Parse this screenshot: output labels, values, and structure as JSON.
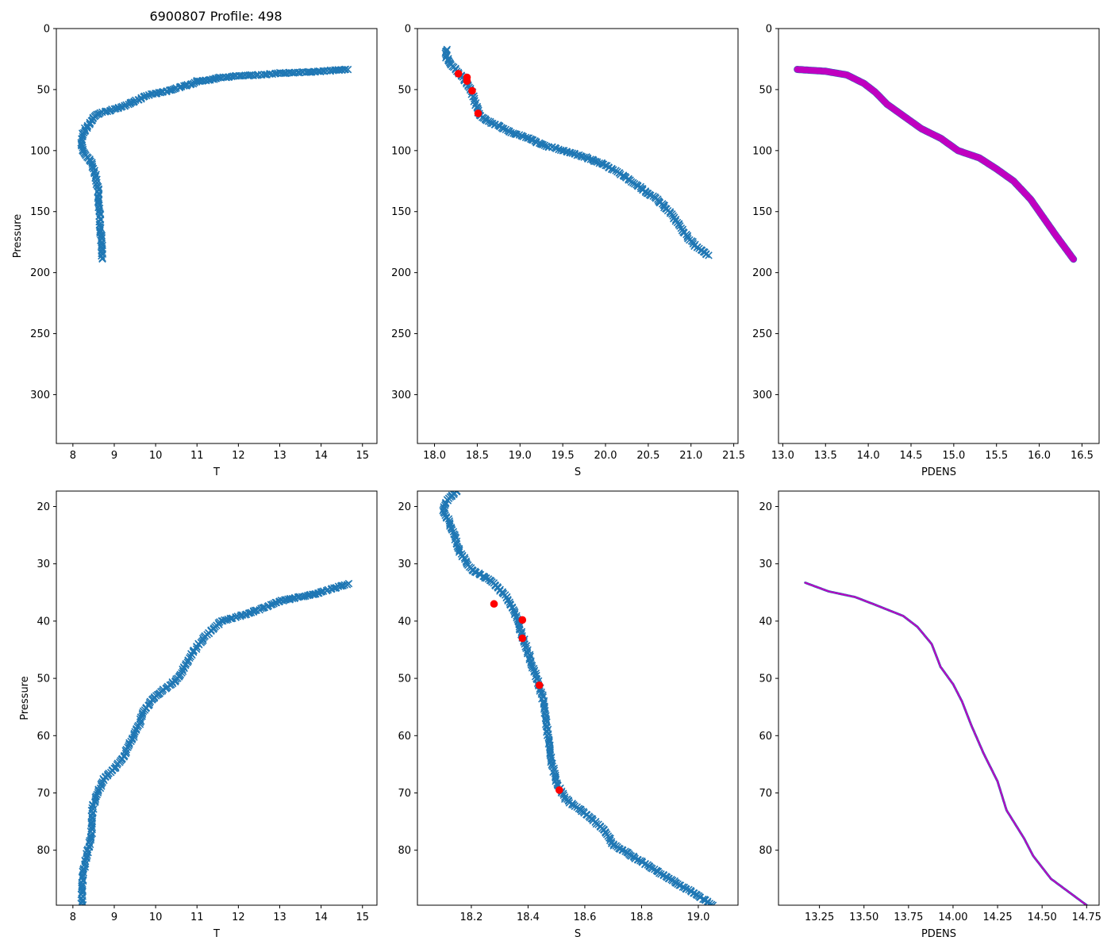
{
  "title": "6900807 Profile: 498",
  "colors": {
    "series": "#1f77b4",
    "flag": "#ff0000",
    "density": "#c000c0"
  },
  "chart_data": [
    {
      "id": "top-temperature",
      "type": "scatter",
      "marker": "x",
      "xlabel": "T",
      "ylabel": "Pressure",
      "xlim": [
        7.6,
        15.35
      ],
      "ylim": [
        340,
        0
      ],
      "xticks": [
        8,
        9,
        10,
        11,
        12,
        13,
        14,
        15
      ],
      "yticks": [
        0,
        50,
        100,
        150,
        200,
        250,
        300
      ],
      "profile": [
        [
          14.65,
          33.5
        ],
        [
          14.0,
          35
        ],
        [
          13.5,
          36
        ],
        [
          13.0,
          36.5
        ],
        [
          12.5,
          38
        ],
        [
          12.0,
          39
        ],
        [
          11.6,
          40
        ],
        [
          11.3,
          42
        ],
        [
          11.0,
          43
        ],
        [
          10.9,
          45
        ],
        [
          10.6,
          48
        ],
        [
          10.4,
          50
        ],
        [
          10.2,
          52
        ],
        [
          9.9,
          54
        ],
        [
          9.7,
          56
        ],
        [
          9.6,
          58
        ],
        [
          9.4,
          61
        ],
        [
          9.2,
          64
        ],
        [
          9.0,
          66
        ],
        [
          8.8,
          68
        ],
        [
          8.6,
          70
        ],
        [
          8.5,
          73
        ],
        [
          8.45,
          76
        ],
        [
          8.4,
          79
        ],
        [
          8.3,
          82
        ],
        [
          8.25,
          86
        ],
        [
          8.22,
          90
        ],
        [
          8.22,
          95
        ],
        [
          8.25,
          100
        ],
        [
          8.35,
          105
        ],
        [
          8.45,
          110
        ],
        [
          8.5,
          115
        ],
        [
          8.55,
          120
        ],
        [
          8.6,
          130
        ],
        [
          8.62,
          140
        ],
        [
          8.65,
          150
        ],
        [
          8.66,
          160
        ],
        [
          8.68,
          170
        ],
        [
          8.7,
          180
        ],
        [
          8.7,
          189
        ]
      ]
    },
    {
      "id": "top-salinity",
      "type": "scatter",
      "marker": "x",
      "xlabel": "S",
      "ylabel": "",
      "xlim": [
        17.8,
        21.55
      ],
      "ylim": [
        340,
        0
      ],
      "xticks": [
        18.0,
        18.5,
        19.0,
        19.5,
        20.0,
        20.5,
        21.0,
        21.5
      ],
      "yticks": [
        0,
        50,
        100,
        150,
        200,
        250,
        300
      ],
      "profile": [
        [
          18.15,
          17
        ],
        [
          18.12,
          20
        ],
        [
          18.15,
          25
        ],
        [
          18.2,
          30
        ],
        [
          18.27,
          35
        ],
        [
          18.33,
          40
        ],
        [
          18.38,
          45
        ],
        [
          18.42,
          50
        ],
        [
          18.45,
          55
        ],
        [
          18.47,
          60
        ],
        [
          18.5,
          65
        ],
        [
          18.52,
          70
        ],
        [
          18.6,
          75
        ],
        [
          18.75,
          80
        ],
        [
          18.9,
          85
        ],
        [
          19.1,
          90
        ],
        [
          19.25,
          95
        ],
        [
          19.5,
          100
        ],
        [
          19.75,
          105
        ],
        [
          20.0,
          112
        ],
        [
          20.2,
          120
        ],
        [
          20.4,
          130
        ],
        [
          20.6,
          140
        ],
        [
          20.75,
          150
        ],
        [
          20.85,
          160
        ],
        [
          20.95,
          170
        ],
        [
          21.05,
          178
        ],
        [
          21.2,
          186
        ]
      ],
      "flagged_points": [
        [
          18.28,
          37
        ],
        [
          18.38,
          40
        ],
        [
          18.38,
          43
        ],
        [
          18.44,
          51
        ],
        [
          18.51,
          69.5
        ]
      ]
    },
    {
      "id": "top-density",
      "type": "line",
      "xlabel": "PDENS",
      "ylabel": "",
      "xlim": [
        12.95,
        16.7
      ],
      "ylim": [
        340,
        0
      ],
      "xticks": [
        13.0,
        13.5,
        14.0,
        14.5,
        15.0,
        15.5,
        16.0,
        16.5
      ],
      "yticks": [
        0,
        50,
        100,
        150,
        200,
        250,
        300
      ],
      "profile": [
        [
          13.17,
          33.5
        ],
        [
          13.5,
          35
        ],
        [
          13.75,
          38
        ],
        [
          13.95,
          45
        ],
        [
          14.08,
          52
        ],
        [
          14.22,
          62
        ],
        [
          14.42,
          72
        ],
        [
          14.62,
          82
        ],
        [
          14.85,
          90
        ],
        [
          15.05,
          100
        ],
        [
          15.3,
          106
        ],
        [
          15.5,
          115
        ],
        [
          15.7,
          125
        ],
        [
          15.9,
          140
        ],
        [
          16.05,
          155
        ],
        [
          16.2,
          170
        ],
        [
          16.4,
          189
        ]
      ]
    },
    {
      "id": "bottom-temperature",
      "type": "scatter",
      "marker": "x",
      "xlabel": "T",
      "ylabel": "Pressure",
      "xlim": [
        7.6,
        15.35
      ],
      "ylim": [
        89.6,
        17.3
      ],
      "xticks": [
        8,
        9,
        10,
        11,
        12,
        13,
        14,
        15
      ],
      "yticks": [
        20,
        30,
        40,
        50,
        60,
        70,
        80
      ],
      "profile": [
        [
          14.65,
          33.5
        ],
        [
          14.0,
          35
        ],
        [
          13.5,
          35.8
        ],
        [
          13.0,
          36.5
        ],
        [
          12.5,
          38
        ],
        [
          12.0,
          39.2
        ],
        [
          11.6,
          40
        ],
        [
          11.3,
          42
        ],
        [
          11.1,
          43.5
        ],
        [
          10.9,
          45.5
        ],
        [
          10.7,
          48
        ],
        [
          10.55,
          50
        ],
        [
          10.2,
          52
        ],
        [
          9.9,
          53.8
        ],
        [
          9.7,
          56
        ],
        [
          9.6,
          58
        ],
        [
          9.4,
          61
        ],
        [
          9.2,
          64
        ],
        [
          9.0,
          65.8
        ],
        [
          8.75,
          67.5
        ],
        [
          8.6,
          70
        ],
        [
          8.5,
          72
        ],
        [
          8.45,
          74
        ],
        [
          8.45,
          77
        ],
        [
          8.4,
          79
        ],
        [
          8.3,
          82
        ],
        [
          8.25,
          84
        ],
        [
          8.22,
          86
        ],
        [
          8.22,
          89.6
        ]
      ]
    },
    {
      "id": "bottom-salinity",
      "type": "scatter",
      "marker": "x",
      "xlabel": "S",
      "ylabel": "",
      "xlim": [
        18.01,
        19.14
      ],
      "ylim": [
        89.6,
        17.3
      ],
      "xticks": [
        18.2,
        18.4,
        18.6,
        18.8,
        19.0
      ],
      "yticks": [
        20,
        30,
        40,
        50,
        60,
        70,
        80
      ],
      "profile": [
        [
          18.15,
          17.3
        ],
        [
          18.12,
          18.5
        ],
        [
          18.1,
          20.5
        ],
        [
          18.12,
          22.5
        ],
        [
          18.14,
          25
        ],
        [
          18.16,
          28
        ],
        [
          18.2,
          31
        ],
        [
          18.27,
          33
        ],
        [
          18.32,
          35.5
        ],
        [
          18.35,
          38
        ],
        [
          18.37,
          41
        ],
        [
          18.39,
          44
        ],
        [
          18.41,
          47
        ],
        [
          18.43,
          50
        ],
        [
          18.45,
          53
        ],
        [
          18.46,
          56
        ],
        [
          18.47,
          60
        ],
        [
          18.48,
          64
        ],
        [
          18.5,
          68
        ],
        [
          18.53,
          71
        ],
        [
          18.6,
          73.5
        ],
        [
          18.67,
          76.5
        ],
        [
          18.7,
          79
        ],
        [
          18.8,
          82
        ],
        [
          18.9,
          85
        ],
        [
          19.0,
          88
        ],
        [
          19.05,
          89.6
        ]
      ],
      "flagged_points": [
        [
          18.28,
          37
        ],
        [
          18.38,
          39.8
        ],
        [
          18.38,
          43
        ],
        [
          18.44,
          51.2
        ],
        [
          18.51,
          69.5
        ]
      ]
    },
    {
      "id": "bottom-density",
      "type": "line",
      "xlabel": "PDENS",
      "ylabel": "",
      "xlim": [
        13.02,
        14.82
      ],
      "ylim": [
        89.6,
        17.3
      ],
      "xticks": [
        13.25,
        13.5,
        13.75,
        14.0,
        14.25,
        14.5,
        14.75
      ],
      "yticks": [
        20,
        30,
        40,
        50,
        60,
        70,
        80
      ],
      "profile": [
        [
          13.17,
          33.3
        ],
        [
          13.3,
          34.8
        ],
        [
          13.45,
          35.8
        ],
        [
          13.55,
          37
        ],
        [
          13.72,
          39.1
        ],
        [
          13.8,
          41
        ],
        [
          13.88,
          44
        ],
        [
          13.93,
          48
        ],
        [
          14.0,
          51
        ],
        [
          14.05,
          54
        ],
        [
          14.1,
          58
        ],
        [
          14.17,
          63
        ],
        [
          14.25,
          68
        ],
        [
          14.3,
          73
        ],
        [
          14.4,
          78
        ],
        [
          14.45,
          81
        ],
        [
          14.55,
          85
        ],
        [
          14.75,
          89.6
        ]
      ]
    }
  ]
}
